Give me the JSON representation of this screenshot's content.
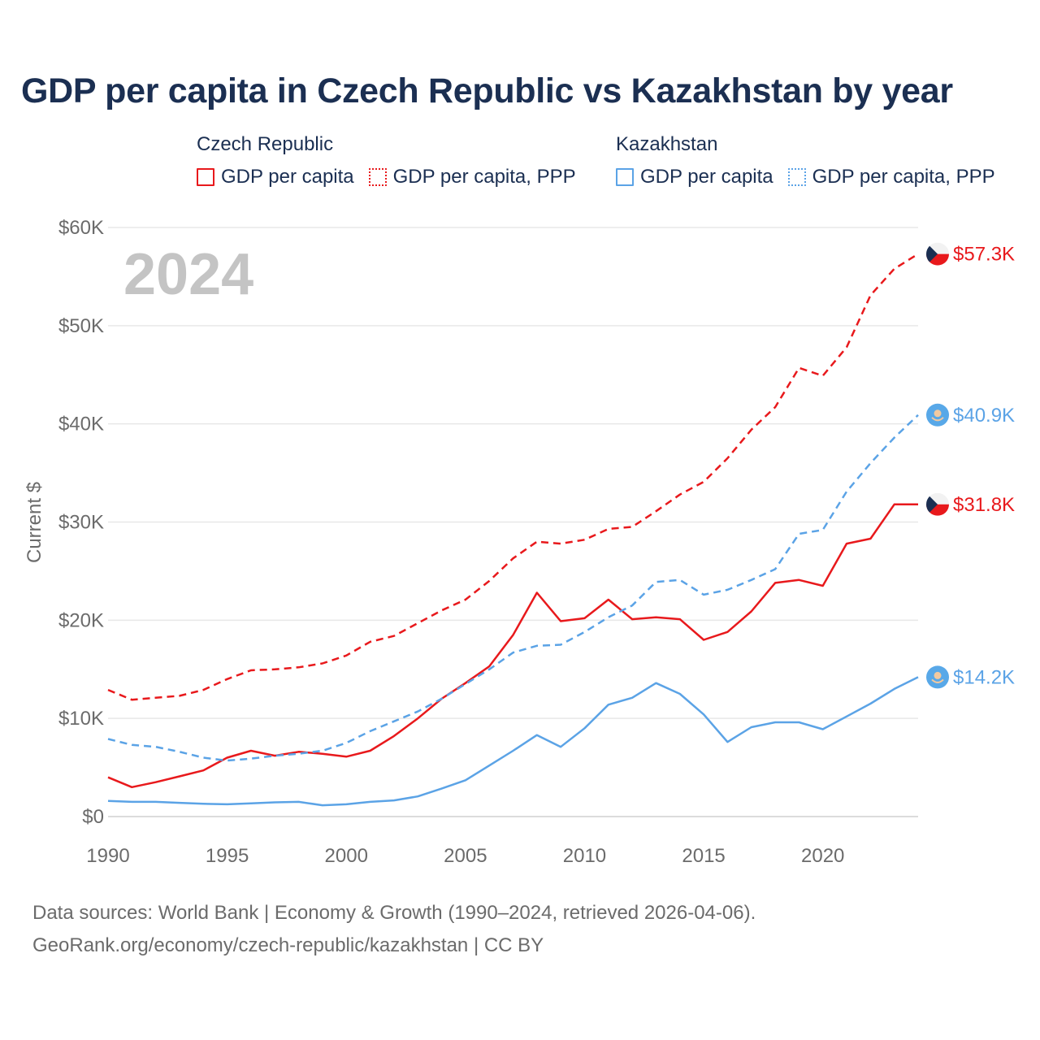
{
  "title": "GDP per capita in Czech Republic vs Kazakhstan by year",
  "legend": {
    "groups": [
      {
        "name": "Czech Republic",
        "color": "#e8191c",
        "items": [
          {
            "label": "GDP per capita",
            "style": "solid"
          },
          {
            "label": "GDP per capita, PPP",
            "style": "dotted"
          }
        ]
      },
      {
        "name": "Kazakhstan",
        "color": "#5ba3e6",
        "items": [
          {
            "label": "GDP per capita",
            "style": "solid"
          },
          {
            "label": "GDP per capita, PPP",
            "style": "dotted"
          }
        ]
      }
    ]
  },
  "chart_data": {
    "type": "line",
    "title": "GDP per capita in Czech Republic vs Kazakhstan by year",
    "ylabel": "Current $",
    "xlabel": "",
    "xlim": [
      1990,
      2024
    ],
    "ylim": [
      0,
      60000
    ],
    "x_ticks": [
      1990,
      1995,
      2000,
      2005,
      2010,
      2015,
      2020
    ],
    "x_tick_labels": [
      "1990",
      "1995",
      "2000",
      "2005",
      "2010",
      "2015",
      "2020"
    ],
    "y_ticks": [
      0,
      10000,
      20000,
      30000,
      40000,
      50000,
      60000
    ],
    "y_tick_labels": [
      "$0",
      "$10K",
      "$20K",
      "$30K",
      "$40K",
      "$50K",
      "$60K"
    ],
    "year_watermark": "2024",
    "x": [
      1990,
      1991,
      1992,
      1993,
      1994,
      1995,
      1996,
      1997,
      1998,
      1999,
      2000,
      2001,
      2002,
      2003,
      2004,
      2005,
      2006,
      2007,
      2008,
      2009,
      2010,
      2011,
      2012,
      2013,
      2014,
      2015,
      2016,
      2017,
      2018,
      2019,
      2020,
      2021,
      2022,
      2023,
      2024
    ],
    "series": [
      {
        "name": "Czech Republic GDP per capita",
        "country": "Czech Republic",
        "color": "#e8191c",
        "dash": "solid",
        "values": [
          4000,
          3000,
          3500,
          4100,
          4700,
          6000,
          6700,
          6200,
          6600,
          6400,
          6100,
          6700,
          8200,
          10000,
          12000,
          13600,
          15300,
          18500,
          22800,
          19900,
          20200,
          22100,
          20100,
          20300,
          20100,
          18000,
          18800,
          20900,
          23800,
          24100,
          23500,
          27800,
          28300,
          31800,
          31800
        ],
        "end_label": "$31.8K"
      },
      {
        "name": "Czech Republic GDP per capita, PPP",
        "country": "Czech Republic",
        "color": "#e8191c",
        "dash": "dashed",
        "values": [
          12900,
          11900,
          12100,
          12300,
          12900,
          14000,
          14900,
          15000,
          15200,
          15600,
          16400,
          17800,
          18400,
          19700,
          21000,
          22100,
          24000,
          26300,
          28000,
          27800,
          28200,
          29300,
          29500,
          31100,
          32800,
          34100,
          36500,
          39400,
          41700,
          45700,
          44900,
          47800,
          53100,
          55800,
          57300
        ],
        "end_label": "$57.3K"
      },
      {
        "name": "Kazakhstan GDP per capita",
        "country": "Kazakhstan",
        "color": "#5ba3e6",
        "dash": "solid",
        "values": [
          1600,
          1500,
          1500,
          1400,
          1300,
          1250,
          1350,
          1450,
          1500,
          1150,
          1250,
          1500,
          1650,
          2050,
          2850,
          3700,
          5200,
          6700,
          8300,
          7100,
          9000,
          11400,
          12100,
          13600,
          12500,
          10400,
          7600,
          9100,
          9600,
          9600,
          8900,
          10200,
          11500,
          13000,
          14200
        ],
        "end_label": "$14.2K"
      },
      {
        "name": "Kazakhstan GDP per capita, PPP",
        "country": "Kazakhstan",
        "color": "#5ba3e6",
        "dash": "dashed",
        "values": [
          7900,
          7300,
          7100,
          6600,
          6000,
          5700,
          5900,
          6200,
          6400,
          6700,
          7500,
          8700,
          9700,
          10700,
          12000,
          13500,
          15000,
          16700,
          17400,
          17500,
          18800,
          20300,
          21500,
          23900,
          24100,
          22600,
          23100,
          24100,
          25200,
          28800,
          29200,
          33100,
          36000,
          38600,
          40900
        ],
        "end_label": "$40.9K"
      }
    ]
  },
  "footer": {
    "line1": "Data sources: World Bank | Economy & Growth (1990–2024, retrieved 2026-04-06).",
    "line2": "GeoRank.org/economy/czech-republic/kazakhstan | CC BY"
  }
}
